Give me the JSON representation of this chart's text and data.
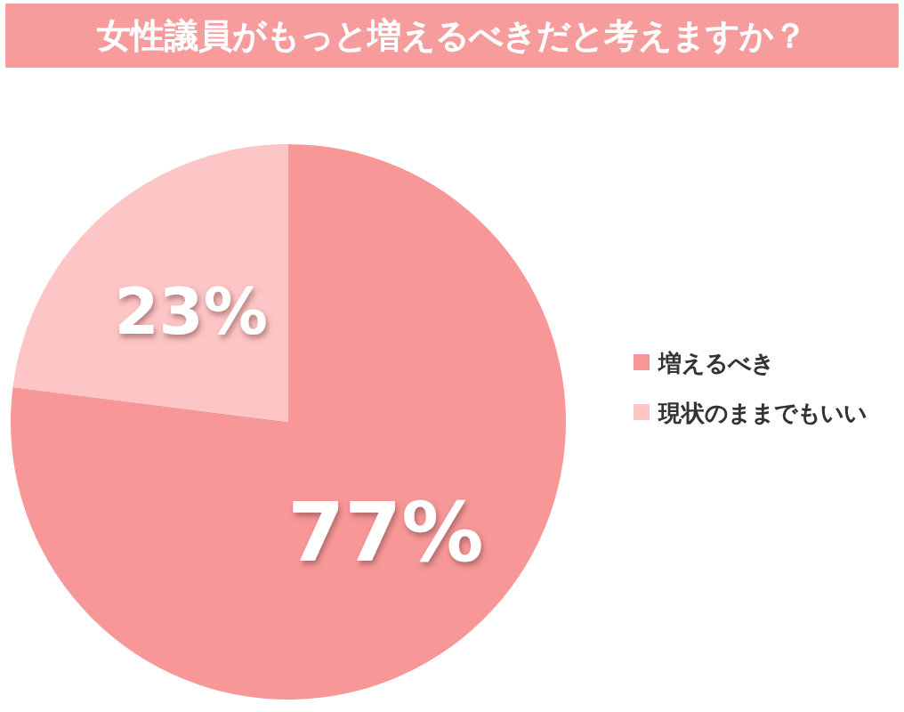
{
  "chart_data": {
    "type": "pie",
    "title": "女性議員がもっと増えるべきだと考えますか？",
    "categories": [
      "増えるべき",
      "現状のままでもいい"
    ],
    "values": [
      77,
      23
    ],
    "colors": [
      "#f89797",
      "#fdc5c5"
    ],
    "value_labels": [
      "77%",
      "23%"
    ],
    "legend": "right"
  }
}
